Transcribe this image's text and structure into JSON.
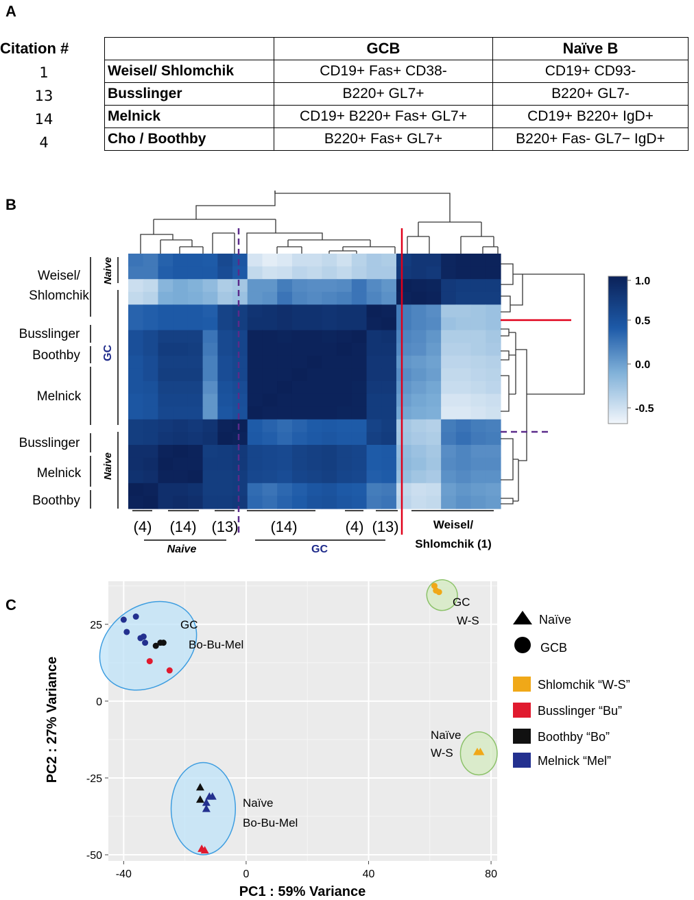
{
  "panels": {
    "a": "A",
    "b": "B",
    "c": "C"
  },
  "table": {
    "citation_header": "Citation #",
    "columns": [
      "",
      "GCB",
      "Naïve B"
    ],
    "rows": [
      {
        "citation": "1",
        "lab": "Weisel/ Shlomchik",
        "gcb": "CD19+ Fas+ CD38-",
        "naive": "CD19+ CD93-"
      },
      {
        "citation": "13",
        "lab": "Busslinger",
        "gcb": "B220+ GL7+",
        "naive": "B220+ GL7-"
      },
      {
        "citation": "14",
        "lab": "Melnick",
        "gcb": "CD19+ B220+ Fas+ GL7+",
        "naive": "CD19+ B220+ IgD+"
      },
      {
        "citation": "4",
        "lab": "Cho / Boothby",
        "gcb": "B220+ Fas+ GL7+",
        "naive": "B220+ Fas- GL7− IgD+"
      }
    ]
  },
  "chart_data": [
    {
      "type": "heatmap",
      "colorbar": {
        "ticks": [
          "1.0",
          "0.5",
          "0.0",
          "-0.5"
        ],
        "range": [
          -0.7,
          1.0
        ],
        "low_color": "#f2f6fb",
        "high_color": "#0b2158"
      },
      "row_labels": {
        "weisel": "Weisel/",
        "shlomchik": "Shlomchik",
        "busslinger_gc": "Busslinger",
        "boothby_gc": "Boothby",
        "melnick_gc": "Melnick",
        "busslinger_naive": "Busslinger",
        "melnick_naive": "Melnick",
        "boothby_naive": "Boothby",
        "naive_top": "Naive",
        "gc": "GC",
        "naive_bottom": "Naive"
      },
      "col_labels": {
        "c4": "(4)",
        "c14": "(14)",
        "c13": "(13)",
        "gc14": "(14)",
        "gc4": "(4)",
        "gc13": "(13)",
        "ws1": "Weisel/",
        "ws2": "Shlomchik (1)",
        "naive": "Naive",
        "gc": "GC"
      },
      "values": [
        [
          0.25,
          0.22,
          0.36,
          0.42,
          0.42,
          0.4,
          0.58,
          0.45,
          -0.55,
          -0.62,
          -0.58,
          -0.5,
          -0.5,
          -0.45,
          -0.52,
          -0.4,
          -0.32,
          -0.35,
          0.72,
          0.78,
          0.78,
          0.95,
          0.98,
          0.98,
          0.98
        ],
        [
          0.22,
          0.22,
          0.38,
          0.42,
          0.42,
          0.42,
          0.55,
          0.42,
          -0.45,
          -0.52,
          -0.5,
          -0.42,
          -0.45,
          -0.4,
          -0.45,
          -0.38,
          -0.32,
          -0.32,
          0.75,
          0.78,
          0.75,
          0.95,
          0.98,
          0.98,
          0.98
        ],
        [
          -0.5,
          -0.45,
          -0.15,
          -0.08,
          -0.12,
          -0.2,
          -0.35,
          -0.3,
          0.05,
          0.05,
          0.2,
          0.12,
          0.1,
          0.1,
          0.12,
          0.25,
          0.12,
          0.05,
          1.0,
          0.98,
          0.96,
          0.75,
          0.72,
          0.72,
          0.72
        ],
        [
          -0.45,
          -0.4,
          -0.1,
          -0.08,
          -0.1,
          -0.15,
          -0.3,
          -0.25,
          0.05,
          0.08,
          0.25,
          0.15,
          0.12,
          0.15,
          0.18,
          0.25,
          0.15,
          0.08,
          0.98,
          1.0,
          0.98,
          0.75,
          0.7,
          0.7,
          0.7
        ],
        [
          0.35,
          0.38,
          0.42,
          0.42,
          0.42,
          0.38,
          0.65,
          0.7,
          0.8,
          0.82,
          0.85,
          0.82,
          0.82,
          0.8,
          0.82,
          0.82,
          1.0,
          0.98,
          0.2,
          0.15,
          0.1,
          -0.3,
          -0.3,
          -0.28,
          -0.25
        ],
        [
          0.35,
          0.38,
          0.42,
          0.42,
          0.42,
          0.4,
          0.65,
          0.7,
          0.82,
          0.82,
          0.85,
          0.82,
          0.82,
          0.8,
          0.82,
          0.82,
          0.98,
          1.0,
          0.2,
          0.15,
          0.12,
          -0.25,
          -0.28,
          -0.28,
          -0.25
        ],
        [
          0.52,
          0.58,
          0.68,
          0.68,
          0.68,
          0.25,
          0.58,
          0.62,
          0.98,
          0.98,
          0.96,
          0.98,
          0.98,
          0.96,
          0.98,
          1.0,
          0.8,
          0.82,
          0.15,
          0.12,
          0.05,
          -0.35,
          -0.35,
          -0.35,
          -0.3
        ],
        [
          0.52,
          0.58,
          0.72,
          0.72,
          0.7,
          0.22,
          0.58,
          0.62,
          0.98,
          0.98,
          0.98,
          0.98,
          0.98,
          0.98,
          1.0,
          0.98,
          0.8,
          0.8,
          0.12,
          0.1,
          0.02,
          -0.38,
          -0.38,
          -0.35,
          -0.32
        ],
        [
          0.48,
          0.55,
          0.68,
          0.68,
          0.68,
          0.18,
          0.55,
          0.6,
          0.98,
          0.98,
          0.98,
          0.98,
          1.0,
          0.98,
          0.98,
          0.98,
          0.78,
          0.78,
          0.05,
          0.02,
          -0.02,
          -0.42,
          -0.42,
          -0.4,
          -0.38
        ],
        [
          0.48,
          0.55,
          0.7,
          0.7,
          0.7,
          0.18,
          0.55,
          0.6,
          0.98,
          0.98,
          0.98,
          1.0,
          0.98,
          0.98,
          0.98,
          0.98,
          0.78,
          0.78,
          0.1,
          0.05,
          0.0,
          -0.45,
          -0.45,
          -0.42,
          -0.4
        ],
        [
          0.48,
          0.5,
          0.65,
          0.65,
          0.65,
          0.1,
          0.5,
          0.55,
          0.98,
          0.98,
          1.0,
          0.98,
          0.98,
          0.98,
          0.98,
          0.96,
          0.75,
          0.75,
          0.05,
          0.0,
          -0.05,
          -0.48,
          -0.48,
          -0.45,
          -0.42
        ],
        [
          0.45,
          0.48,
          0.62,
          0.62,
          0.62,
          0.05,
          0.48,
          0.52,
          0.98,
          1.0,
          0.98,
          0.98,
          0.98,
          0.98,
          0.98,
          0.96,
          0.72,
          0.72,
          0.0,
          -0.05,
          -0.08,
          -0.55,
          -0.55,
          -0.52,
          -0.5
        ],
        [
          0.45,
          0.48,
          0.6,
          0.6,
          0.6,
          0.05,
          0.45,
          0.5,
          1.0,
          0.98,
          0.98,
          0.98,
          0.98,
          0.98,
          0.96,
          0.96,
          0.72,
          0.72,
          -0.05,
          -0.08,
          -0.1,
          -0.58,
          -0.58,
          -0.55,
          -0.52
        ],
        [
          0.7,
          0.72,
          0.75,
          0.78,
          0.75,
          0.8,
          0.98,
          1.0,
          0.4,
          0.35,
          0.3,
          0.35,
          0.4,
          0.42,
          0.4,
          0.4,
          0.65,
          0.7,
          -0.3,
          -0.35,
          -0.38,
          0.2,
          0.25,
          0.2,
          0.18
        ],
        [
          0.7,
          0.72,
          0.78,
          0.8,
          0.78,
          0.82,
          1.0,
          0.98,
          0.42,
          0.38,
          0.32,
          0.38,
          0.42,
          0.45,
          0.42,
          0.42,
          0.68,
          0.72,
          -0.28,
          -0.32,
          -0.35,
          0.22,
          0.28,
          0.22,
          0.2
        ],
        [
          0.85,
          0.85,
          0.98,
          1.0,
          0.98,
          0.7,
          0.72,
          0.75,
          0.62,
          0.6,
          0.58,
          0.65,
          0.68,
          0.7,
          0.65,
          0.62,
          0.4,
          0.42,
          -0.2,
          -0.25,
          -0.3,
          0.1,
          0.15,
          0.1,
          0.1
        ],
        [
          0.85,
          0.88,
          1.0,
          0.98,
          0.98,
          0.72,
          0.72,
          0.75,
          0.62,
          0.6,
          0.58,
          0.65,
          0.68,
          0.7,
          0.65,
          0.62,
          0.4,
          0.42,
          -0.18,
          -0.22,
          -0.28,
          0.12,
          0.15,
          0.12,
          0.12
        ],
        [
          0.82,
          0.85,
          0.98,
          0.98,
          1.0,
          0.7,
          0.7,
          0.72,
          0.6,
          0.58,
          0.55,
          0.62,
          0.65,
          0.68,
          0.62,
          0.6,
          0.38,
          0.4,
          -0.22,
          -0.28,
          -0.32,
          0.08,
          0.12,
          0.08,
          0.08
        ],
        [
          1.0,
          0.98,
          0.85,
          0.85,
          0.82,
          0.7,
          0.7,
          0.72,
          0.3,
          0.25,
          0.32,
          0.38,
          0.45,
          0.48,
          0.42,
          0.4,
          0.2,
          0.22,
          -0.45,
          -0.5,
          -0.48,
          0.0,
          0.05,
          0.02,
          0.0
        ],
        [
          0.98,
          1.0,
          0.85,
          0.88,
          0.85,
          0.72,
          0.72,
          0.75,
          0.32,
          0.28,
          0.35,
          0.4,
          0.48,
          0.5,
          0.45,
          0.42,
          0.22,
          0.25,
          -0.42,
          -0.48,
          -0.45,
          0.02,
          0.08,
          0.05,
          0.02
        ]
      ]
    },
    {
      "type": "scatter",
      "xlabel": "PC1 : 59% Variance",
      "ylabel": "PC2 : 27% Variance",
      "xlim": [
        -45,
        82
      ],
      "ylim": [
        -52,
        39
      ],
      "xticks": [
        -40,
        0,
        40,
        80
      ],
      "yticks": [
        25,
        0,
        -25,
        -50
      ],
      "cluster_labels": {
        "gc_bbm": [
          "GC",
          "Bo-Bu-Mel"
        ],
        "naive_bbm": [
          "Naïve",
          "Bo-Bu-Mel"
        ],
        "gc_ws": [
          "GC",
          "W-S"
        ],
        "naive_ws": [
          "Naïve",
          "W-S"
        ]
      },
      "legend": {
        "shapes": [
          {
            "shape": "triangle",
            "label": "Naïve"
          },
          {
            "shape": "circle",
            "label": "GCB"
          }
        ],
        "labs": [
          {
            "label": "Shlomchik “W-S”",
            "color": "#f0a818"
          },
          {
            "label": "Busslinger “Bu”",
            "color": "#e01a2e"
          },
          {
            "label": "Boothby “Bo”",
            "color": "#111111"
          },
          {
            "label": "Melnick “Mel”",
            "color": "#23308f"
          }
        ]
      },
      "ellipses": [
        {
          "cx": -32,
          "cy": 18,
          "rx": 17,
          "ry": 13,
          "rotate": 35,
          "fill": "#bfe3f8",
          "stroke": "#3d9de0"
        },
        {
          "cx": -14,
          "cy": -35,
          "rx": 10.5,
          "ry": 15,
          "rotate": 0,
          "fill": "#bfe3f8",
          "stroke": "#3d9de0"
        },
        {
          "cx": 64,
          "cy": 34.5,
          "rx": 5,
          "ry": 5,
          "rotate": 20,
          "fill": "#d4ebc0",
          "stroke": "#8cc26a"
        },
        {
          "cx": 76,
          "cy": -17,
          "rx": 6,
          "ry": 7,
          "rotate": 0,
          "fill": "#d4ebc0",
          "stroke": "#8cc26a"
        }
      ],
      "points": [
        {
          "x": -40,
          "y": 26.5,
          "shape": "circle",
          "group": "Mel"
        },
        {
          "x": -39,
          "y": 22.5,
          "shape": "circle",
          "group": "Mel"
        },
        {
          "x": -36,
          "y": 27.5,
          "shape": "circle",
          "group": "Mel"
        },
        {
          "x": -34.5,
          "y": 20.5,
          "shape": "circle",
          "group": "Mel"
        },
        {
          "x": -33.5,
          "y": 21,
          "shape": "circle",
          "group": "Mel"
        },
        {
          "x": -33,
          "y": 19,
          "shape": "circle",
          "group": "Mel"
        },
        {
          "x": -29.5,
          "y": 18,
          "shape": "circle",
          "group": "Bo"
        },
        {
          "x": -28,
          "y": 19,
          "shape": "circle",
          "group": "Bo"
        },
        {
          "x": -27,
          "y": 19,
          "shape": "circle",
          "group": "Bo"
        },
        {
          "x": -31.5,
          "y": 13,
          "shape": "circle",
          "group": "Bu"
        },
        {
          "x": -25,
          "y": 10,
          "shape": "circle",
          "group": "Bu"
        },
        {
          "x": -15,
          "y": -28,
          "shape": "triangle",
          "group": "Bo"
        },
        {
          "x": -15,
          "y": -32,
          "shape": "triangle",
          "group": "Bo"
        },
        {
          "x": -13,
          "y": -33,
          "shape": "triangle",
          "group": "Mel"
        },
        {
          "x": -12,
          "y": -31,
          "shape": "triangle",
          "group": "Mel"
        },
        {
          "x": -11,
          "y": -31,
          "shape": "triangle",
          "group": "Mel"
        },
        {
          "x": -13,
          "y": -35,
          "shape": "triangle",
          "group": "Mel"
        },
        {
          "x": -14.5,
          "y": -48,
          "shape": "triangle",
          "group": "Bu"
        },
        {
          "x": -13.5,
          "y": -48.5,
          "shape": "triangle",
          "group": "Bu"
        },
        {
          "x": 61.5,
          "y": 37.5,
          "shape": "circle",
          "group": "W-S"
        },
        {
          "x": 62,
          "y": 36,
          "shape": "circle",
          "group": "W-S"
        },
        {
          "x": 63,
          "y": 35.5,
          "shape": "circle",
          "group": "W-S"
        },
        {
          "x": 75.5,
          "y": -16.5,
          "shape": "triangle",
          "group": "W-S"
        },
        {
          "x": 76.5,
          "y": -16.5,
          "shape": "triangle",
          "group": "W-S"
        }
      ],
      "group_colors": {
        "W-S": "#f0a818",
        "Bu": "#e01a2e",
        "Bo": "#111111",
        "Mel": "#23308f"
      }
    }
  ]
}
